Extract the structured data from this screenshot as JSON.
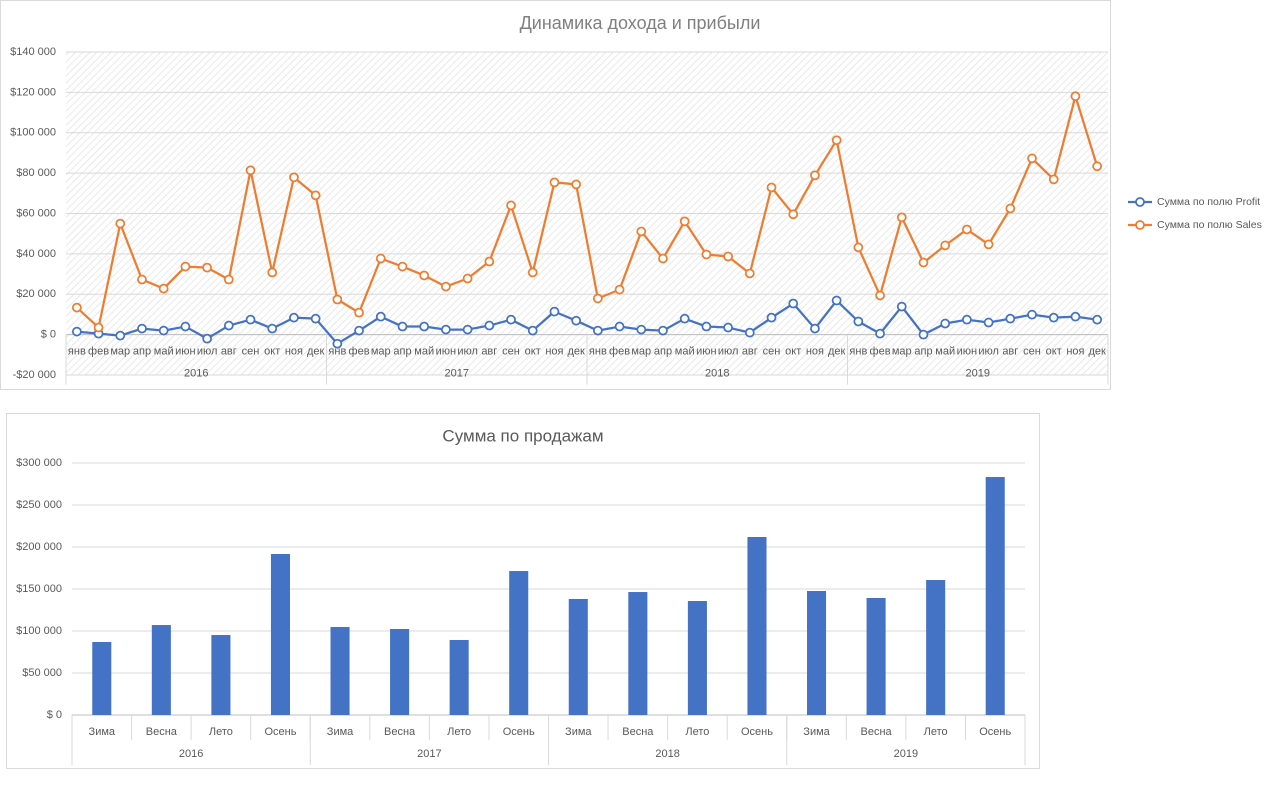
{
  "chart_data": [
    {
      "type": "line",
      "title": "Динамика дохода и прибыли",
      "categories": [
        "янв",
        "фев",
        "мар",
        "апр",
        "май",
        "июн",
        "июл",
        "авг",
        "сен",
        "окт",
        "ноя",
        "дек",
        "янв",
        "фев",
        "мар",
        "апр",
        "май",
        "июн",
        "июл",
        "авг",
        "сен",
        "окт",
        "ноя",
        "дек",
        "янв",
        "фев",
        "мар",
        "апр",
        "май",
        "июн",
        "июл",
        "авг",
        "сен",
        "окт",
        "ноя",
        "дек",
        "янв",
        "фев",
        "мар",
        "апр",
        "май",
        "июн",
        "июл",
        "авг",
        "сен",
        "окт",
        "ноя",
        "дек"
      ],
      "groups": [
        "2016",
        "2017",
        "2018",
        "2019"
      ],
      "series": [
        {
          "name": "Сумма по полю Profit",
          "color": "#4472c4",
          "values": [
            1500,
            500,
            -500,
            3000,
            2000,
            4000,
            -2000,
            4500,
            7400,
            3000,
            8400,
            7900,
            -4500,
            2000,
            8900,
            4000,
            4000,
            2500,
            2500,
            4500,
            7400,
            2000,
            11400,
            6900,
            2000,
            4000,
            2500,
            2000,
            7900,
            4000,
            3500,
            1000,
            8400,
            15400,
            3000,
            16900,
            6500,
            500,
            13900,
            0,
            5500,
            7400,
            6000,
            7900,
            9900,
            8400,
            8900,
            7400
          ]
        },
        {
          "name": "Сумма по полю Sales",
          "color": "#ed7d31",
          "values": [
            13400,
            3500,
            55000,
            27300,
            22800,
            33700,
            33200,
            27300,
            81400,
            30800,
            77900,
            69000,
            17400,
            10900,
            37700,
            33700,
            29300,
            23800,
            27800,
            36200,
            64000,
            30800,
            75400,
            74400,
            17900,
            22300,
            51100,
            37700,
            56100,
            39700,
            38700,
            30300,
            72900,
            59600,
            78900,
            96300,
            43200,
            19400,
            58100,
            35700,
            44200,
            52100,
            44700,
            62500,
            87300,
            76900,
            118100,
            83400
          ]
        }
      ],
      "ylim": [
        -20000,
        140000
      ],
      "yticks": [
        {
          "value": -20000,
          "label": "-$20 000"
        },
        {
          "value": 0,
          "label": "$ 0"
        },
        {
          "value": 20000,
          "label": "$20 000"
        },
        {
          "value": 40000,
          "label": "$40 000"
        },
        {
          "value": 60000,
          "label": "$60 000"
        },
        {
          "value": 80000,
          "label": "$80 000"
        },
        {
          "value": 100000,
          "label": "$100 000"
        },
        {
          "value": 120000,
          "label": "$120 000"
        },
        {
          "value": 140000,
          "label": "$140 000"
        }
      ],
      "grid": true,
      "legend": "right"
    },
    {
      "type": "bar",
      "title": "Сумма по продажам",
      "categories": [
        "Зима",
        "Весна",
        "Лето",
        "Осень",
        "Зима",
        "Весна",
        "Лето",
        "Осень",
        "Зима",
        "Весна",
        "Лето",
        "Осень",
        "Зима",
        "Весна",
        "Лето",
        "Осень"
      ],
      "groups": [
        "2016",
        "2017",
        "2018",
        "2019"
      ],
      "values": [
        86900,
        107100,
        95200,
        191700,
        104800,
        102400,
        89300,
        171400,
        138100,
        146400,
        135700,
        211900,
        147600,
        139300,
        160700,
        283300
      ],
      "color": "#4472c4",
      "ylim": [
        0,
        300000
      ],
      "yticks": [
        {
          "value": 0,
          "label": "$ 0"
        },
        {
          "value": 50000,
          "label": "$50 000"
        },
        {
          "value": 100000,
          "label": "$100 000"
        },
        {
          "value": 150000,
          "label": "$150 000"
        },
        {
          "value": 200000,
          "label": "$200 000"
        },
        {
          "value": 250000,
          "label": "$250 000"
        },
        {
          "value": 300000,
          "label": "$300 000"
        }
      ],
      "grid": true
    }
  ]
}
